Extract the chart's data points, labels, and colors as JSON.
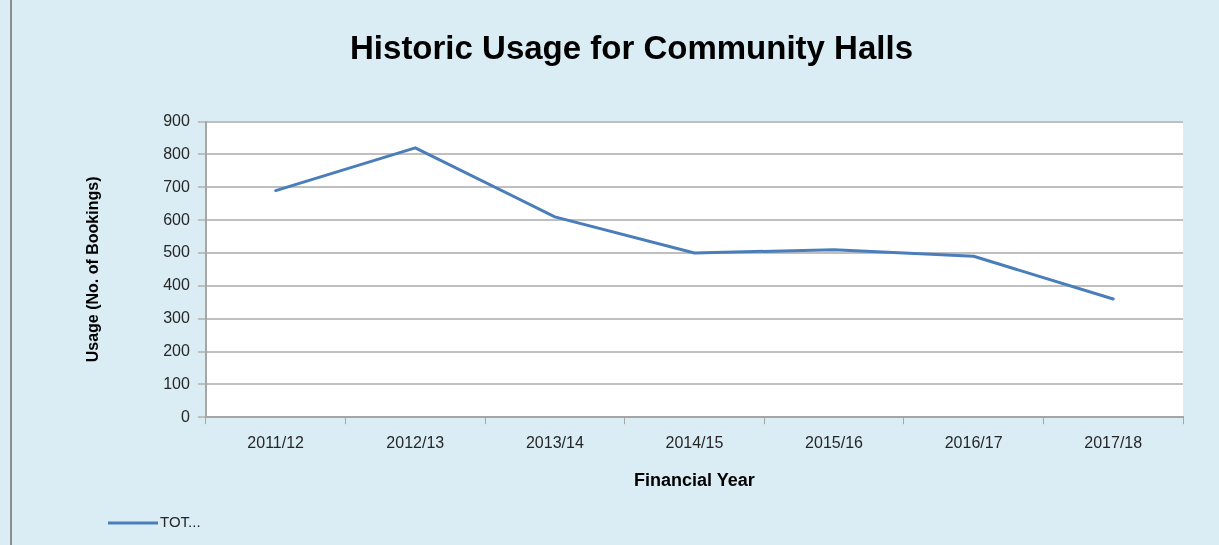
{
  "chart_data": {
    "type": "line",
    "title": "Historic Usage for Community Halls",
    "xlabel": "Financial Year",
    "ylabel": "Usage (No. of Bookings)",
    "categories": [
      "2011/12",
      "2012/13",
      "2013/14",
      "2014/15",
      "2015/16",
      "2016/17",
      "2017/18"
    ],
    "series": [
      {
        "name": "TOT...",
        "color": "#4a7ebb",
        "values": [
          690,
          820,
          610,
          500,
          510,
          490,
          360
        ]
      }
    ],
    "ylim": [
      0,
      900
    ],
    "yticks": [
      0,
      100,
      200,
      300,
      400,
      500,
      600,
      700,
      800,
      900
    ],
    "grid": "y",
    "legend": "bottom left",
    "marker": "none",
    "line_style": "solid"
  }
}
